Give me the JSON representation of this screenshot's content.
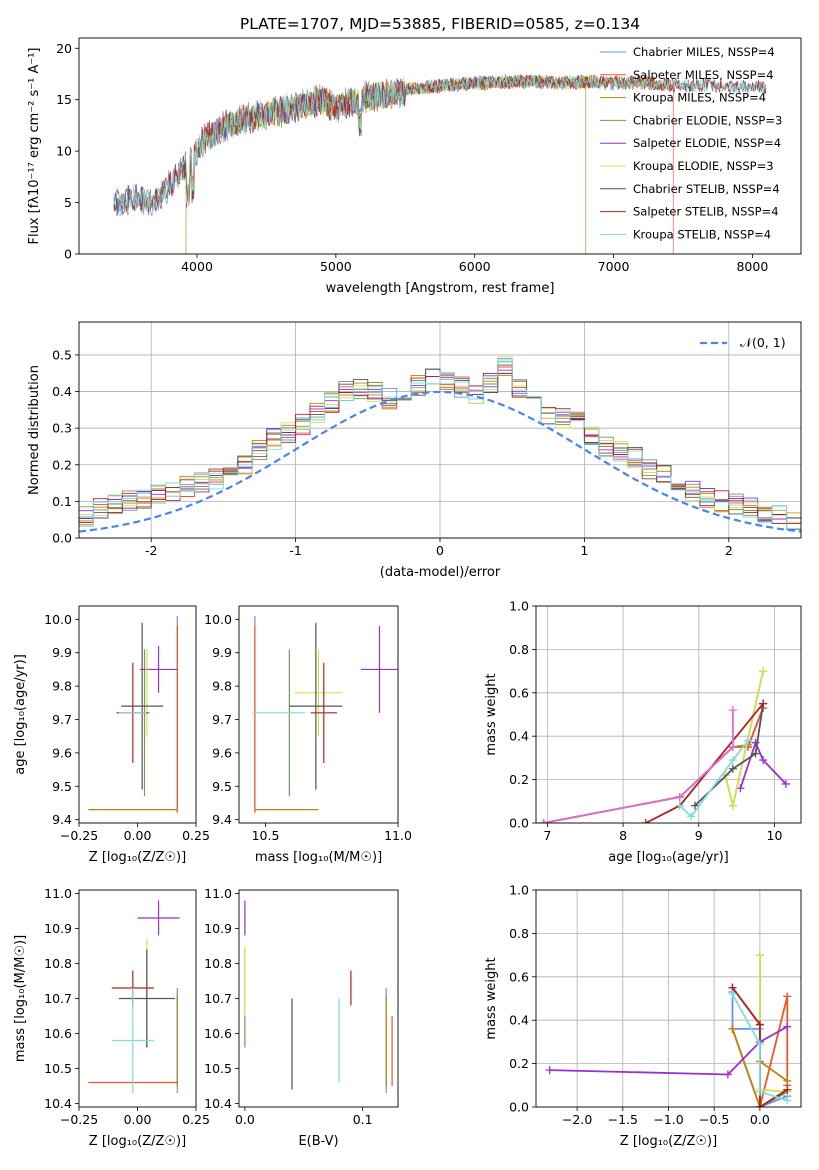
{
  "title": "PLATE=1707, MJD=53885, FIBERID=0585, z=0.134",
  "chart_data": [
    {
      "id": "spectrum",
      "type": "line",
      "xlabel": "wavelength [Angstrom, rest frame]",
      "ylabel": "Flux [fλ10⁻¹⁷ erg cm⁻² s⁻¹ A⁻¹]",
      "xlim": [
        3150,
        8350
      ],
      "ylim": [
        0,
        21
      ],
      "xticks": [
        4000,
        5000,
        6000,
        7000,
        8000
      ],
      "yticks": [
        0,
        5,
        10,
        15,
        20
      ],
      "grid": false,
      "legend_position": "top-right",
      "continuum": {
        "x": [
          3450,
          3560,
          3700,
          3850,
          3950,
          4050,
          4200,
          4350,
          4500,
          4700,
          4900,
          5000,
          5200,
          5400,
          5600,
          5800,
          6000,
          6200,
          6400,
          6600,
          6800,
          7000,
          7200,
          7400,
          7600,
          7800,
          8000,
          8100
        ],
        "y": [
          5.5,
          5.8,
          5.6,
          7.8,
          9.4,
          11.5,
          12.8,
          13.6,
          14.0,
          14.6,
          15.3,
          14.6,
          15.6,
          16.0,
          16.3,
          16.6,
          16.8,
          16.9,
          17.0,
          16.8,
          16.9,
          16.8,
          16.9,
          16.6,
          16.6,
          16.5,
          16.4,
          16.3
        ]
      },
      "series": [
        {
          "name": "Chabrier MILES, N_SSP=4",
          "color": "#6495ED",
          "x_start": 3400,
          "x_end": 7400,
          "drop_at": null
        },
        {
          "name": "Salpeter MILES, N_SSP=4",
          "color": "#F0542B",
          "x_start": 3560,
          "x_end": 7430,
          "drop_at": [
            3560,
            7430
          ]
        },
        {
          "name": "Kroupa MILES, N_SSP=4",
          "color": "#B8860B",
          "x_start": 3400,
          "x_end": 7400,
          "drop_at": [
            3920,
            6800
          ]
        },
        {
          "name": "Chabrier ELODIE, N_SSP=3",
          "color": "#6E9E5A",
          "x_start": 3900,
          "x_end": 6800,
          "drop_at": null
        },
        {
          "name": "Salpeter ELODIE, N_SSP=4",
          "color": "#9932CC",
          "x_start": 3900,
          "x_end": 6800,
          "drop_at": null
        },
        {
          "name": "Kroupa ELODIE, N_SSP=3",
          "color": "#D4E157",
          "x_start": 3900,
          "x_end": 6800,
          "drop_at": null
        },
        {
          "name": "Chabrier STELIB, N_SSP=4",
          "color": "#555555",
          "x_start": 3400,
          "x_end": 8100,
          "drop_at": null
        },
        {
          "name": "Salpeter STELIB, N_SSP=4",
          "color": "#B22222",
          "x_start": 3400,
          "x_end": 8100,
          "drop_at": null
        },
        {
          "name": "Kroupa STELIB, N_SSP=4",
          "color": "#7FDDDD",
          "x_start": 3400,
          "x_end": 8100,
          "drop_at": null
        }
      ]
    },
    {
      "id": "histogram",
      "type": "bar",
      "xlabel": "(data-model)/error",
      "ylabel": "Normed distribution",
      "xlim": [
        -2.5,
        2.5
      ],
      "ylim": [
        0,
        0.59
      ],
      "xticks": [
        -2,
        -1,
        0,
        1,
        2
      ],
      "yticks": [
        0.0,
        0.1,
        0.2,
        0.3,
        0.4,
        0.5
      ],
      "grid": true,
      "legend_position": "top-right",
      "reference_curve": {
        "name": "𝒩(0, 1)",
        "mean": 0,
        "sigma": 1,
        "color": "#4A86E8"
      },
      "bin_edges_step": 0.1,
      "profile_values": [
        0.03,
        0.03,
        0.04,
        0.04,
        0.05,
        0.06,
        0.08,
        0.09,
        0.1,
        0.11,
        0.12,
        0.13,
        0.14,
        0.15,
        0.16,
        0.17,
        0.2,
        0.24,
        0.27,
        0.29,
        0.31,
        0.34,
        0.37,
        0.4,
        0.41,
        0.4,
        0.38,
        0.4,
        0.42,
        0.44,
        0.43,
        0.41,
        0.39,
        0.42,
        0.47,
        0.41,
        0.38,
        0.34,
        0.33,
        0.32,
        0.28,
        0.25,
        0.24,
        0.22,
        0.19,
        0.17,
        0.15,
        0.13,
        0.11,
        0.1,
        0.09,
        0.08,
        0.07,
        0.06,
        0.05,
        0.05,
        0.04,
        0.04,
        0.03,
        0.03
      ]
    },
    {
      "id": "age-vs-Z",
      "type": "scatter",
      "xlabel": "Z [log₁₀(Z/Z☉)]",
      "ylabel": "age  [log₁₀(age/yr)]",
      "xlim": [
        -0.25,
        0.25
      ],
      "ylim": [
        9.39,
        10.04
      ],
      "xticks": [
        -0.25,
        0.0,
        0.25
      ],
      "xtick_labels": [
        "−0.25",
        "0.00",
        "0.25"
      ],
      "yticks": [
        9.4,
        9.5,
        9.6,
        9.7,
        9.8,
        9.9,
        10.0
      ],
      "grid": false,
      "points": [
        {
          "color": "#6495ED",
          "x": 0.17,
          "xerr": 0.0,
          "y": 9.72,
          "yerr": 0.29
        },
        {
          "color": "#F0542B",
          "x": 0.17,
          "xerr": 0.0,
          "y": 9.7,
          "yerr": 0.28
        },
        {
          "color": "#B8860B",
          "x": -0.02,
          "xerr": 0.19,
          "y": 9.43,
          "yerr": 0.0
        },
        {
          "color": "#6E9E5A",
          "x": 0.03,
          "xerr": 0.0,
          "y": 9.69,
          "yerr": 0.22
        },
        {
          "color": "#9932CC",
          "x": 0.09,
          "xerr": 0.08,
          "y": 9.85,
          "yerr": 0.07
        },
        {
          "color": "#D4E157",
          "x": 0.04,
          "xerr": 0.0,
          "y": 9.78,
          "yerr": 0.13
        },
        {
          "color": "#555555",
          "x": 0.02,
          "xerr": 0.09,
          "y": 9.74,
          "yerr": 0.25
        },
        {
          "color": "#B22222",
          "x": -0.02,
          "xerr": 0.07,
          "y": 9.72,
          "yerr": 0.15
        },
        {
          "color": "#7FDDDD",
          "x": -0.02,
          "xerr": 0.06,
          "y": 9.72,
          "yerr": 0.0
        }
      ]
    },
    {
      "id": "age-vs-mass",
      "type": "scatter",
      "xlabel": "mass [log₁₀(M/M☉)]",
      "ylabel": "",
      "xlim": [
        10.4,
        11.0
      ],
      "ylim": [
        9.39,
        10.04
      ],
      "xticks": [
        10.5,
        11.0
      ],
      "xtick_labels": [
        "10.5",
        "11.0"
      ],
      "yticks": [
        9.4,
        9.5,
        9.6,
        9.7,
        9.8,
        9.9,
        10.0
      ],
      "grid": false,
      "points": [
        {
          "color": "#6495ED",
          "x": 10.46,
          "xerr": 0.0,
          "y": 9.72,
          "yerr": 0.29
        },
        {
          "color": "#F0542B",
          "x": 10.46,
          "xerr": 0.0,
          "y": 9.7,
          "yerr": 0.28
        },
        {
          "color": "#B8860B",
          "x": 10.58,
          "xerr": 0.12,
          "y": 9.43,
          "yerr": 0.0
        },
        {
          "color": "#6E9E5A",
          "x": 10.59,
          "xerr": 0.0,
          "y": 9.69,
          "yerr": 0.22
        },
        {
          "color": "#9932CC",
          "x": 10.93,
          "xerr": 0.07,
          "y": 9.85,
          "yerr": 0.13
        },
        {
          "color": "#D4E157",
          "x": 10.7,
          "xerr": 0.09,
          "y": 9.78,
          "yerr": 0.13
        },
        {
          "color": "#555555",
          "x": 10.69,
          "xerr": 0.1,
          "y": 9.74,
          "yerr": 0.25
        },
        {
          "color": "#B22222",
          "x": 10.72,
          "xerr": 0.05,
          "y": 9.72,
          "yerr": 0.15
        },
        {
          "color": "#7FDDDD",
          "x": 10.55,
          "xerr": 0.1,
          "y": 9.72,
          "yerr": 0.0
        }
      ]
    },
    {
      "id": "massweight-vs-age",
      "type": "line",
      "xlabel": "age  [log₁₀(age/yr)]",
      "ylabel": "mass weight",
      "xlim": [
        6.85,
        10.35
      ],
      "ylim": [
        0.0,
        1.0
      ],
      "xticks": [
        7,
        8,
        9,
        10
      ],
      "yticks": [
        0.0,
        0.2,
        0.4,
        0.6,
        0.8,
        1.0
      ],
      "grid": true,
      "series": [
        {
          "color": "#6495ED",
          "x": [
            6.95,
            8.75,
            9.45,
            9.65,
            9.85
          ],
          "y": [
            0.0,
            0.12,
            0.35,
            0.35,
            0.53
          ]
        },
        {
          "color": "#F0542B",
          "x": [
            6.95,
            8.75,
            9.45,
            9.65,
            9.85
          ],
          "y": [
            0.0,
            0.12,
            0.35,
            0.35,
            0.53
          ]
        },
        {
          "color": "#B8860B",
          "x": [
            6.95,
            8.75,
            9.45,
            9.65
          ],
          "y": [
            0.0,
            0.12,
            0.35,
            0.36
          ]
        },
        {
          "color": "#6E9E5A",
          "x": [
            9.35,
            9.45,
            9.85
          ],
          "y": [
            0.22,
            0.08,
            0.7
          ]
        },
        {
          "color": "#9932CC",
          "x": [
            9.55,
            9.75,
            9.85,
            10.15
          ],
          "y": [
            0.16,
            0.37,
            0.29,
            0.18
          ]
        },
        {
          "color": "#D4E157",
          "x": [
            9.35,
            9.45,
            9.85
          ],
          "y": [
            0.22,
            0.08,
            0.7
          ]
        },
        {
          "color": "#555555",
          "x": [
            8.95,
            9.45,
            9.75,
            9.85
          ],
          "y": [
            0.08,
            0.25,
            0.32,
            0.55
          ]
        },
        {
          "color": "#B22222",
          "x": [
            8.3,
            8.75,
            9.85
          ],
          "y": [
            0.0,
            0.08,
            0.55
          ]
        },
        {
          "color": "#7FDDDD",
          "x": [
            8.75,
            8.9,
            9.45,
            9.65
          ],
          "y": [
            0.08,
            0.03,
            0.29,
            0.38
          ]
        },
        {
          "color": "#DA70D6",
          "x": [
            6.95,
            8.75,
            9.45,
            9.45
          ],
          "y": [
            0.0,
            0.12,
            0.35,
            0.52
          ]
        }
      ]
    },
    {
      "id": "mass-vs-Z",
      "type": "scatter",
      "xlabel": "Z [log₁₀(Z/Z☉)]",
      "ylabel": "mass [log₁₀(M/M☉)]",
      "xlim": [
        -0.25,
        0.25
      ],
      "ylim": [
        10.39,
        11.01
      ],
      "xticks": [
        -0.25,
        0.0,
        0.25
      ],
      "xtick_labels": [
        "−0.25",
        "0.00",
        "0.25"
      ],
      "yticks": [
        10.4,
        10.5,
        10.6,
        10.7,
        10.8,
        10.9,
        11.0
      ],
      "grid": false,
      "points": [
        {
          "color": "#6495ED",
          "x": 0.17,
          "xerr": 0.0,
          "y": 10.58,
          "yerr": 0.15
        },
        {
          "color": "#F0542B",
          "x": -0.02,
          "xerr": 0.19,
          "y": 10.46,
          "yerr": 0.0
        },
        {
          "color": "#B8860B",
          "x": 0.17,
          "xerr": 0.0,
          "y": 10.58,
          "yerr": 0.13
        },
        {
          "color": "#6E9E5A",
          "x": 0.04,
          "xerr": 0.0,
          "y": 10.7,
          "yerr": 0.14
        },
        {
          "color": "#9932CC",
          "x": 0.09,
          "xerr": 0.09,
          "y": 10.93,
          "yerr": 0.05
        },
        {
          "color": "#D4E157",
          "x": 0.04,
          "xerr": 0.0,
          "y": 10.78,
          "yerr": 0.09
        },
        {
          "color": "#555555",
          "x": 0.04,
          "xerr": 0.12,
          "y": 10.7,
          "yerr": 0.14
        },
        {
          "color": "#B22222",
          "x": -0.02,
          "xerr": 0.09,
          "y": 10.73,
          "yerr": 0.05
        },
        {
          "color": "#7FDDDD",
          "x": -0.02,
          "xerr": 0.09,
          "y": 10.58,
          "yerr": 0.15
        }
      ]
    },
    {
      "id": "mass-vs-ebv",
      "type": "scatter",
      "xlabel": "E(B-V)",
      "ylabel": "",
      "xlim": [
        -0.005,
        0.13
      ],
      "ylim": [
        10.39,
        11.01
      ],
      "xticks": [
        0.0,
        0.1
      ],
      "xtick_labels": [
        "0.0",
        "0.1"
      ],
      "yticks": [
        10.4,
        10.5,
        10.6,
        10.7,
        10.8,
        10.9,
        11.0
      ],
      "grid": false,
      "points": [
        {
          "color": "#6495ED",
          "x": 0.12,
          "xerr": 0.0,
          "y": 10.58,
          "yerr": 0.15
        },
        {
          "color": "#F0542B",
          "x": 0.125,
          "xerr": 0.0,
          "y": 10.55,
          "yerr": 0.1
        },
        {
          "color": "#B8860B",
          "x": 0.12,
          "xerr": 0.0,
          "y": 10.58,
          "yerr": 0.13
        },
        {
          "color": "#6E9E5A",
          "x": 0.0,
          "xerr": 0.0,
          "y": 10.7,
          "yerr": 0.14
        },
        {
          "color": "#9932CC",
          "x": 0.0,
          "xerr": 0.0,
          "y": 10.93,
          "yerr": 0.05
        },
        {
          "color": "#D4E157",
          "x": 0.0,
          "xerr": 0.0,
          "y": 10.75,
          "yerr": 0.1
        },
        {
          "color": "#555555",
          "x": 0.04,
          "xerr": 0.0,
          "y": 10.57,
          "yerr": 0.13
        },
        {
          "color": "#B22222",
          "x": 0.09,
          "xerr": 0.0,
          "y": 10.73,
          "yerr": 0.05
        },
        {
          "color": "#7FDDDD",
          "x": 0.08,
          "xerr": 0.0,
          "y": 10.58,
          "yerr": 0.12
        }
      ]
    },
    {
      "id": "massweight-vs-Z",
      "type": "line",
      "xlabel": "Z [log₁₀(Z/Z☉)]",
      "ylabel": "mass weight",
      "xlim": [
        -2.45,
        0.45
      ],
      "ylim": [
        0.0,
        1.0
      ],
      "xticks": [
        -2.0,
        -1.5,
        -1.0,
        -0.5,
        0.0
      ],
      "xtick_labels": [
        "−2.0",
        "−1.5",
        "−1.0",
        "−0.5",
        "0.0"
      ],
      "yticks": [
        0.0,
        0.2,
        0.4,
        0.6,
        0.8,
        1.0
      ],
      "grid": true,
      "series": [
        {
          "color": "#6495ED",
          "x": [
            -0.3,
            -0.3,
            0.0,
            0.0,
            0.3
          ],
          "y": [
            0.53,
            0.36,
            0.36,
            0.0,
            0.05
          ]
        },
        {
          "color": "#F0542B",
          "x": [
            -0.3,
            0.0,
            0.0,
            0.3,
            0.3
          ],
          "y": [
            0.36,
            0.0,
            0.0,
            0.51,
            0.1
          ]
        },
        {
          "color": "#B8860B",
          "x": [
            -0.3,
            0.0,
            0.0,
            0.3
          ],
          "y": [
            0.36,
            0.0,
            0.21,
            0.12
          ]
        },
        {
          "color": "#6E9E5A",
          "x": [
            0.0,
            0.0,
            0.3
          ],
          "y": [
            0.7,
            0.0,
            0.07
          ]
        },
        {
          "color": "#9932CC",
          "x": [
            -2.3,
            -0.35,
            0.0,
            0.3
          ],
          "y": [
            0.17,
            0.15,
            0.3,
            0.37
          ]
        },
        {
          "color": "#D4E157",
          "x": [
            0.0,
            0.0,
            0.3
          ],
          "y": [
            0.7,
            0.08,
            0.07
          ]
        },
        {
          "color": "#555555",
          "x": [
            -0.3,
            0.0,
            0.0,
            0.3
          ],
          "y": [
            0.55,
            0.38,
            0.0,
            0.08
          ]
        },
        {
          "color": "#B22222",
          "x": [
            -0.3,
            0.0,
            0.0,
            0.3
          ],
          "y": [
            0.55,
            0.38,
            0.0,
            0.08
          ]
        },
        {
          "color": "#7FDDDD",
          "x": [
            -0.3,
            0.0,
            0.0,
            0.3
          ],
          "y": [
            0.52,
            0.29,
            0.07,
            0.03
          ]
        }
      ]
    }
  ]
}
